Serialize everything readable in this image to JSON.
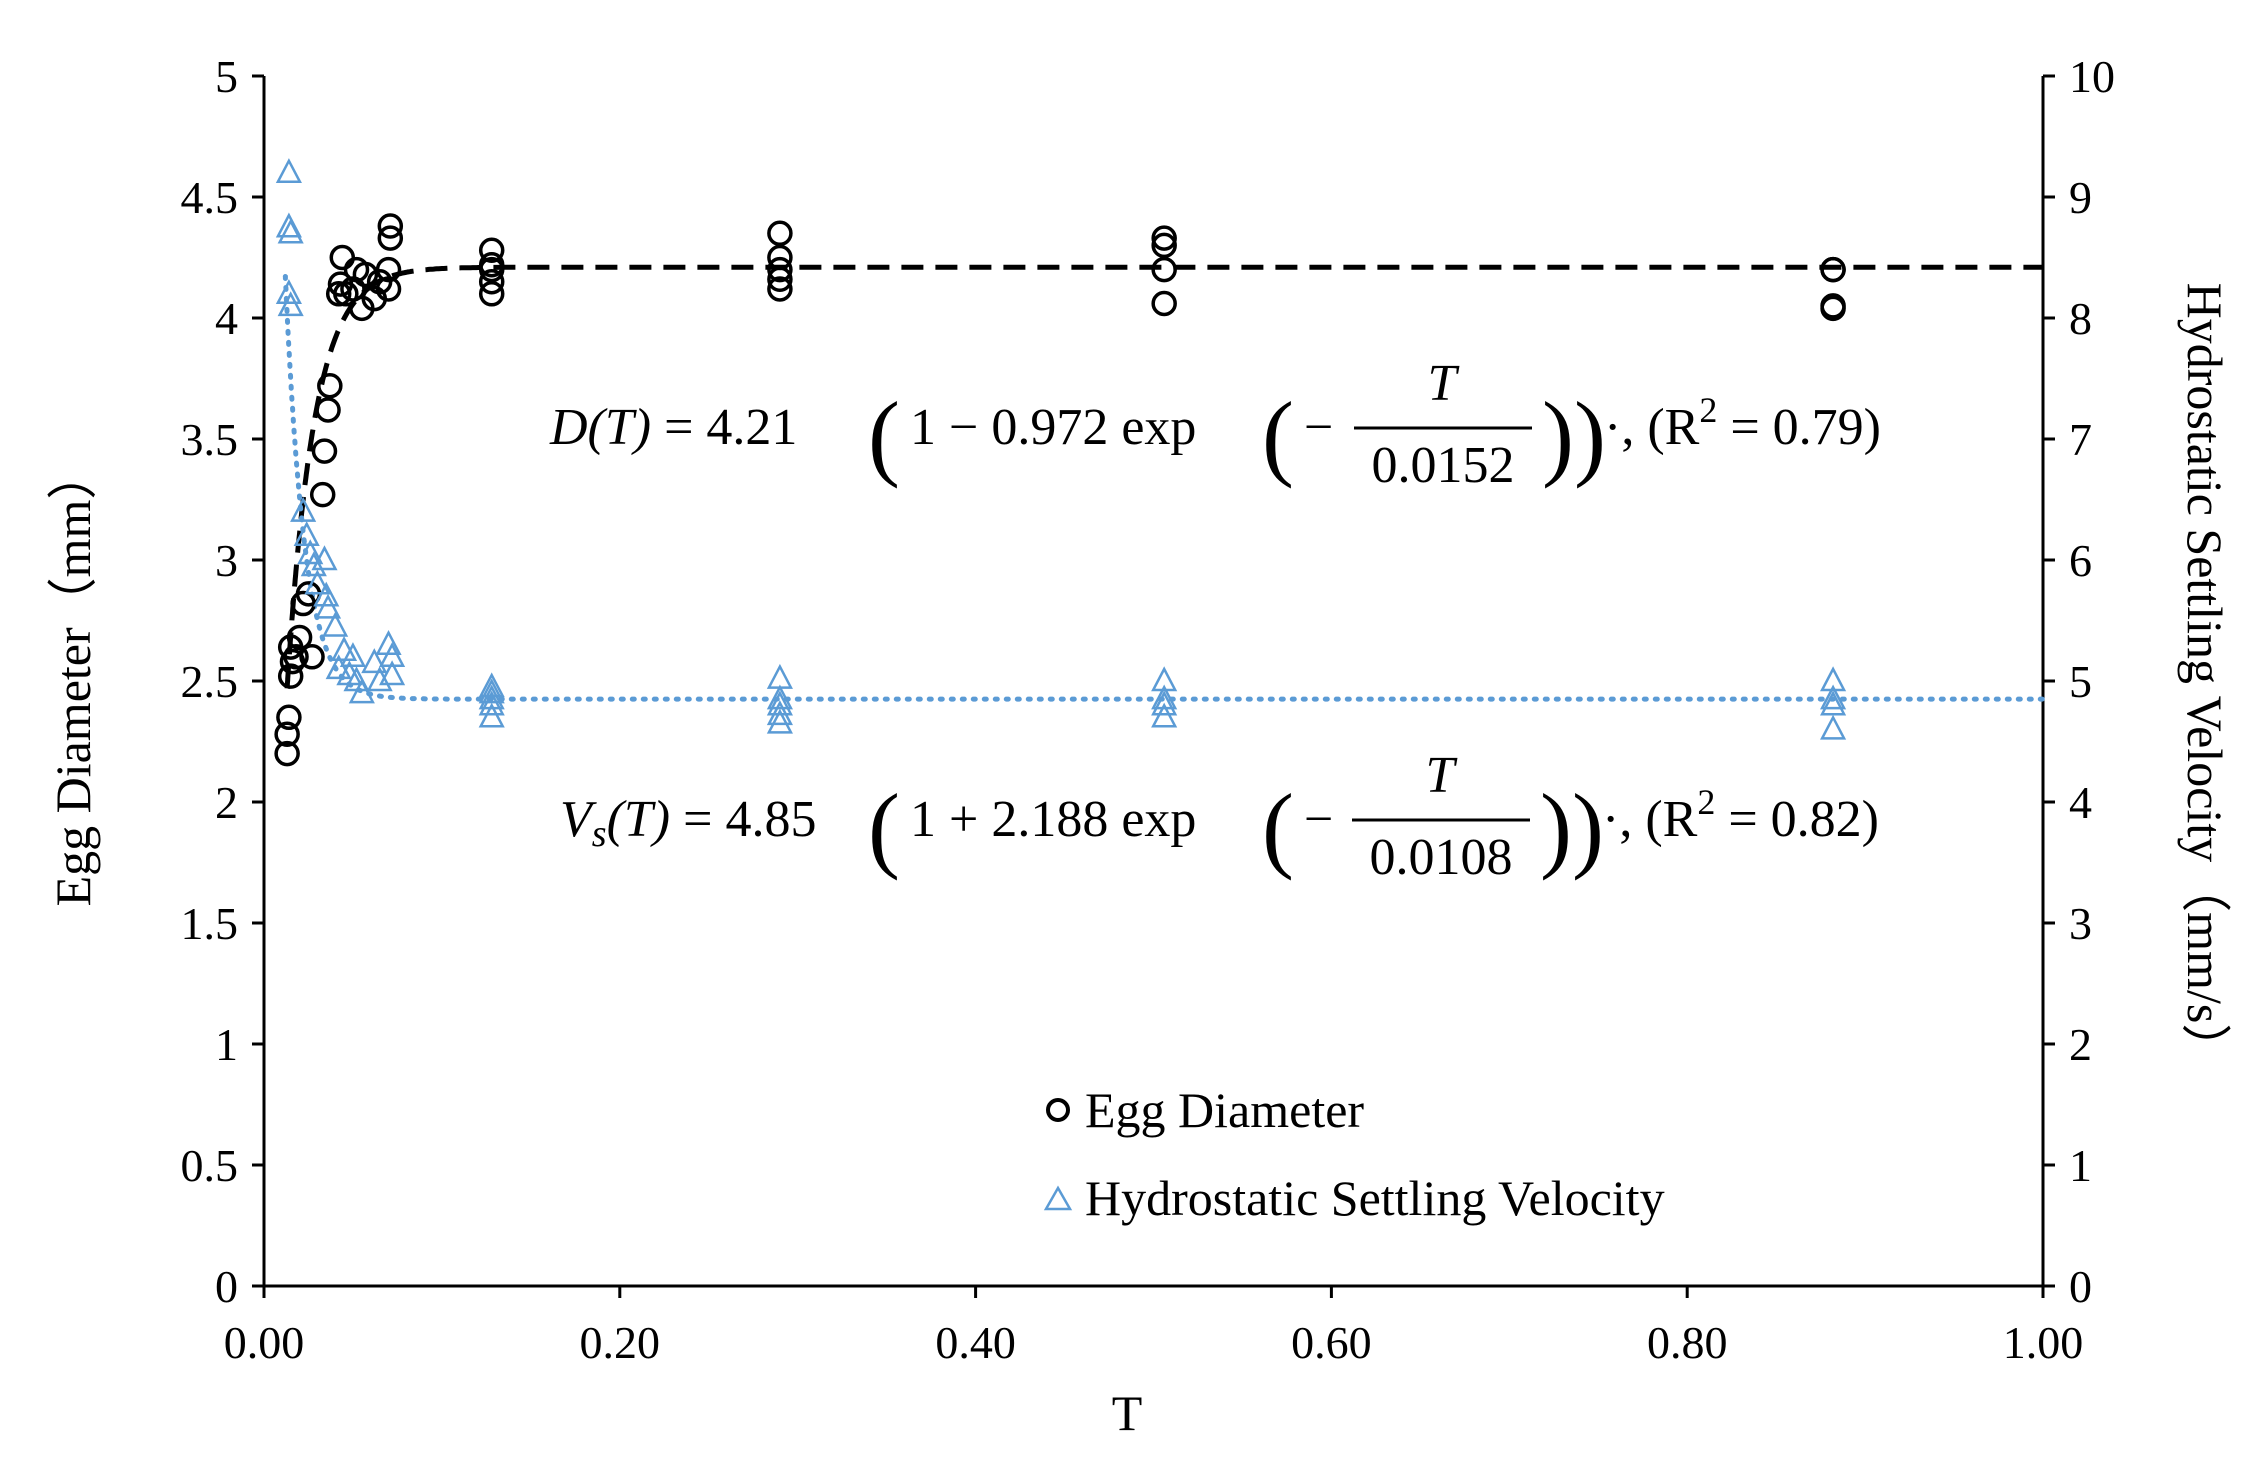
{
  "chart_data": {
    "type": "scatter",
    "title": "",
    "xlabel": "T",
    "ylabel_left": "Egg Diameter（mm）",
    "ylabel_right": "Hydrostatic Settling Velocity（mm/s）",
    "xlim": [
      0,
      1
    ],
    "ylim_left": [
      0,
      5
    ],
    "ylim_right": [
      0,
      10
    ],
    "x_ticks": [
      "0.00",
      "0.20",
      "0.40",
      "0.60",
      "0.80",
      "1.00"
    ],
    "y_left_ticks": [
      "0",
      "0.5",
      "1",
      "1.5",
      "2",
      "2.5",
      "3",
      "3.5",
      "4",
      "4.5",
      "5"
    ],
    "y_right_ticks": [
      "0",
      "1",
      "2",
      "3",
      "4",
      "5",
      "6",
      "7",
      "8",
      "9",
      "10"
    ],
    "grid": false,
    "legend_position": "bottom-center",
    "legend": [
      "Egg Diameter",
      "Hydrostatic Settling Velocity"
    ],
    "series": [
      {
        "name": "Egg Diameter",
        "axis": "left",
        "marker": "circle",
        "color": "#000000",
        "points": [
          [
            0.013,
            2.2
          ],
          [
            0.013,
            2.28
          ],
          [
            0.014,
            2.35
          ],
          [
            0.015,
            2.52
          ],
          [
            0.016,
            2.58
          ],
          [
            0.015,
            2.64
          ],
          [
            0.018,
            2.6
          ],
          [
            0.02,
            2.68
          ],
          [
            0.022,
            2.82
          ],
          [
            0.025,
            2.86
          ],
          [
            0.027,
            2.6
          ],
          [
            0.033,
            3.27
          ],
          [
            0.034,
            3.45
          ],
          [
            0.036,
            3.62
          ],
          [
            0.037,
            3.72
          ],
          [
            0.042,
            4.1
          ],
          [
            0.043,
            4.14
          ],
          [
            0.044,
            4.25
          ],
          [
            0.046,
            4.1
          ],
          [
            0.05,
            4.12
          ],
          [
            0.052,
            4.2
          ],
          [
            0.055,
            4.04
          ],
          [
            0.057,
            4.18
          ],
          [
            0.062,
            4.08
          ],
          [
            0.065,
            4.15
          ],
          [
            0.07,
            4.12
          ],
          [
            0.07,
            4.2
          ],
          [
            0.071,
            4.33
          ],
          [
            0.071,
            4.38
          ],
          [
            0.128,
            4.1
          ],
          [
            0.128,
            4.15
          ],
          [
            0.128,
            4.2
          ],
          [
            0.128,
            4.22
          ],
          [
            0.128,
            4.28
          ],
          [
            0.29,
            4.12
          ],
          [
            0.29,
            4.16
          ],
          [
            0.29,
            4.2
          ],
          [
            0.29,
            4.25
          ],
          [
            0.29,
            4.35
          ],
          [
            0.506,
            4.06
          ],
          [
            0.506,
            4.2
          ],
          [
            0.506,
            4.3
          ],
          [
            0.506,
            4.33
          ],
          [
            0.882,
            4.04
          ],
          [
            0.882,
            4.05
          ],
          [
            0.882,
            4.2
          ],
          [
            0.882,
            4.2
          ]
        ]
      },
      {
        "name": "Hydrostatic Settling Velocity",
        "axis": "right",
        "marker": "triangle",
        "color": "#5B9BD5",
        "points": [
          [
            0.014,
            9.2
          ],
          [
            0.014,
            8.75
          ],
          [
            0.015,
            8.7
          ],
          [
            0.014,
            8.2
          ],
          [
            0.015,
            8.1
          ],
          [
            0.022,
            6.4
          ],
          [
            0.024,
            6.2
          ],
          [
            0.026,
            6.05
          ],
          [
            0.028,
            5.95
          ],
          [
            0.03,
            5.8
          ],
          [
            0.034,
            6.0
          ],
          [
            0.035,
            5.7
          ],
          [
            0.036,
            5.6
          ],
          [
            0.04,
            5.45
          ],
          [
            0.042,
            5.1
          ],
          [
            0.045,
            5.25
          ],
          [
            0.048,
            5.05
          ],
          [
            0.05,
            5.2
          ],
          [
            0.052,
            5.0
          ],
          [
            0.055,
            4.9
          ],
          [
            0.062,
            5.15
          ],
          [
            0.065,
            5.0
          ],
          [
            0.07,
            5.3
          ],
          [
            0.072,
            5.2
          ],
          [
            0.072,
            5.05
          ],
          [
            0.128,
            4.7
          ],
          [
            0.128,
            4.8
          ],
          [
            0.128,
            4.85
          ],
          [
            0.128,
            4.9
          ],
          [
            0.128,
            4.95
          ],
          [
            0.29,
            4.65
          ],
          [
            0.29,
            4.72
          ],
          [
            0.29,
            4.8
          ],
          [
            0.29,
            4.85
          ],
          [
            0.29,
            5.02
          ],
          [
            0.506,
            4.7
          ],
          [
            0.506,
            4.8
          ],
          [
            0.506,
            4.85
          ],
          [
            0.506,
            5.0
          ],
          [
            0.882,
            4.6
          ],
          [
            0.882,
            4.8
          ],
          [
            0.882,
            4.85
          ],
          [
            0.882,
            5.0
          ]
        ]
      }
    ],
    "fits": [
      {
        "name": "D(T) fit",
        "axis": "left",
        "style": "dashed",
        "color": "#000000",
        "A": 4.21,
        "b": 0.972,
        "tau": 0.0152,
        "sign": -1,
        "x_start": 0.013
      },
      {
        "name": "Vs(T) fit",
        "axis": "right",
        "style": "dotted",
        "color": "#5B9BD5",
        "A": 4.85,
        "b": 2.188,
        "tau": 0.0108,
        "sign": 1,
        "x_start": 0.012
      }
    ],
    "annotations": {
      "eq1": {
        "lhs": "D(T)",
        "mid": " = 4.21",
        "inner": "1 − 0.972 exp",
        "minus": "−",
        "num": "T",
        "den": "0.0152",
        "tail": "·, (R",
        "sup": "2",
        "end": " = 0.79)"
      },
      "eq2": {
        "lhs_v": "V",
        "lhs_s": "s",
        "lhs_t": "(T)",
        "mid": " = 4.85",
        "inner": "1 + 2.188 exp",
        "minus": "−",
        "num": "T",
        "den": "0.0108",
        "tail": "·, (R",
        "sup": "2",
        "end": " = 0.82)"
      }
    }
  }
}
